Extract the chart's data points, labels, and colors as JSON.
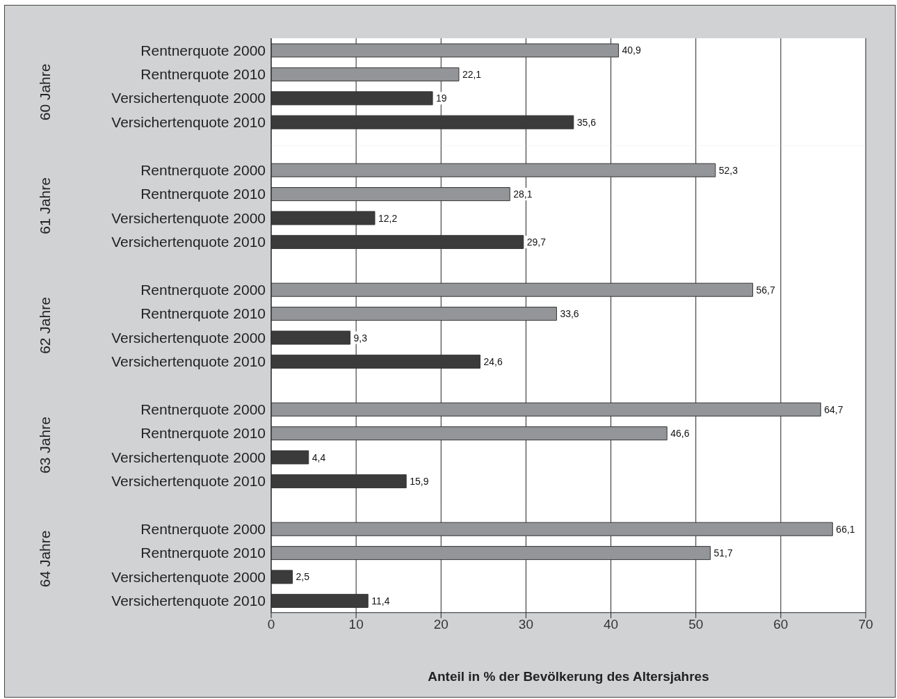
{
  "chart_data": [
    {
      "type": "bar",
      "orientation": "horizontal",
      "ylabel": "60 Jahre",
      "categories": [
        "Rentnerquote 2000",
        "Rentnerquote 2010",
        "Versichertenquote 2000",
        "Versichertenquote 2010"
      ],
      "values": [
        40.9,
        22.1,
        19,
        35.6
      ],
      "colors": [
        "#939598",
        "#939598",
        "#3b3b3b",
        "#3b3b3b"
      ],
      "value_labels": [
        "40,9",
        "22,1",
        "19",
        "35,6"
      ],
      "xlim": [
        0,
        70
      ],
      "xticks": [
        0,
        10,
        20,
        30,
        40,
        50,
        60,
        70
      ],
      "grid": "x",
      "tick_labels": "y"
    },
    {
      "type": "bar",
      "orientation": "horizontal",
      "ylabel": "61 Jahre",
      "categories": [
        "Rentnerquote 2000",
        "Rentnerquote 2010",
        "Versichertenquote 2000",
        "Versichertenquote 2010"
      ],
      "values": [
        52.3,
        28.1,
        12.2,
        29.7
      ],
      "colors": [
        "#939598",
        "#939598",
        "#3b3b3b",
        "#3b3b3b"
      ],
      "value_labels": [
        "52,3",
        "28,1",
        "12,2",
        "29,7"
      ],
      "xlim": [
        0,
        70
      ],
      "xticks": [
        0,
        10,
        20,
        30,
        40,
        50,
        60,
        70
      ],
      "grid": "x",
      "tick_labels": "y"
    },
    {
      "type": "bar",
      "orientation": "horizontal",
      "ylabel": "62 Jahre",
      "categories": [
        "Rentnerquote 2000",
        "Rentnerquote 2010",
        "Versichertenquote 2000",
        "Versichertenquote 2010"
      ],
      "values": [
        56.7,
        33.6,
        9.3,
        24.6
      ],
      "colors": [
        "#939598",
        "#939598",
        "#3b3b3b",
        "#3b3b3b"
      ],
      "value_labels": [
        "56,7",
        "33,6",
        "9,3",
        "24,6"
      ],
      "xlim": [
        0,
        70
      ],
      "xticks": [
        0,
        10,
        20,
        30,
        40,
        50,
        60,
        70
      ],
      "grid": "x",
      "tick_labels": "y"
    },
    {
      "type": "bar",
      "orientation": "horizontal",
      "ylabel": "63 Jahre",
      "categories": [
        "Rentnerquote 2000",
        "Rentnerquote 2010",
        "Versichertenquote 2000",
        "Versichertenquote 2010"
      ],
      "values": [
        64.7,
        46.6,
        4.4,
        15.9
      ],
      "colors": [
        "#939598",
        "#939598",
        "#3b3b3b",
        "#3b3b3b"
      ],
      "value_labels": [
        "64,7",
        "46,6",
        "4,4",
        "15,9"
      ],
      "xlim": [
        0,
        70
      ],
      "xticks": [
        0,
        10,
        20,
        30,
        40,
        50,
        60,
        70
      ],
      "grid": "x",
      "tick_labels": "y"
    },
    {
      "type": "bar",
      "orientation": "horizontal",
      "ylabel": "64 Jahre",
      "xlabel": "Anteil in % der Bevölkerung des Altersjahres",
      "categories": [
        "Rentnerquote 2000",
        "Rentnerquote 2010",
        "Versichertenquote 2000",
        "Versichertenquote 2010"
      ],
      "values": [
        66.1,
        51.7,
        2.5,
        11.4
      ],
      "colors": [
        "#939598",
        "#939598",
        "#3b3b3b",
        "#3b3b3b"
      ],
      "value_labels": [
        "66,1",
        "51,7",
        "2,5",
        "11,4"
      ],
      "xlim": [
        0,
        70
      ],
      "xticks": [
        0,
        10,
        20,
        30,
        40,
        50,
        60,
        70
      ],
      "grid": "x"
    }
  ]
}
